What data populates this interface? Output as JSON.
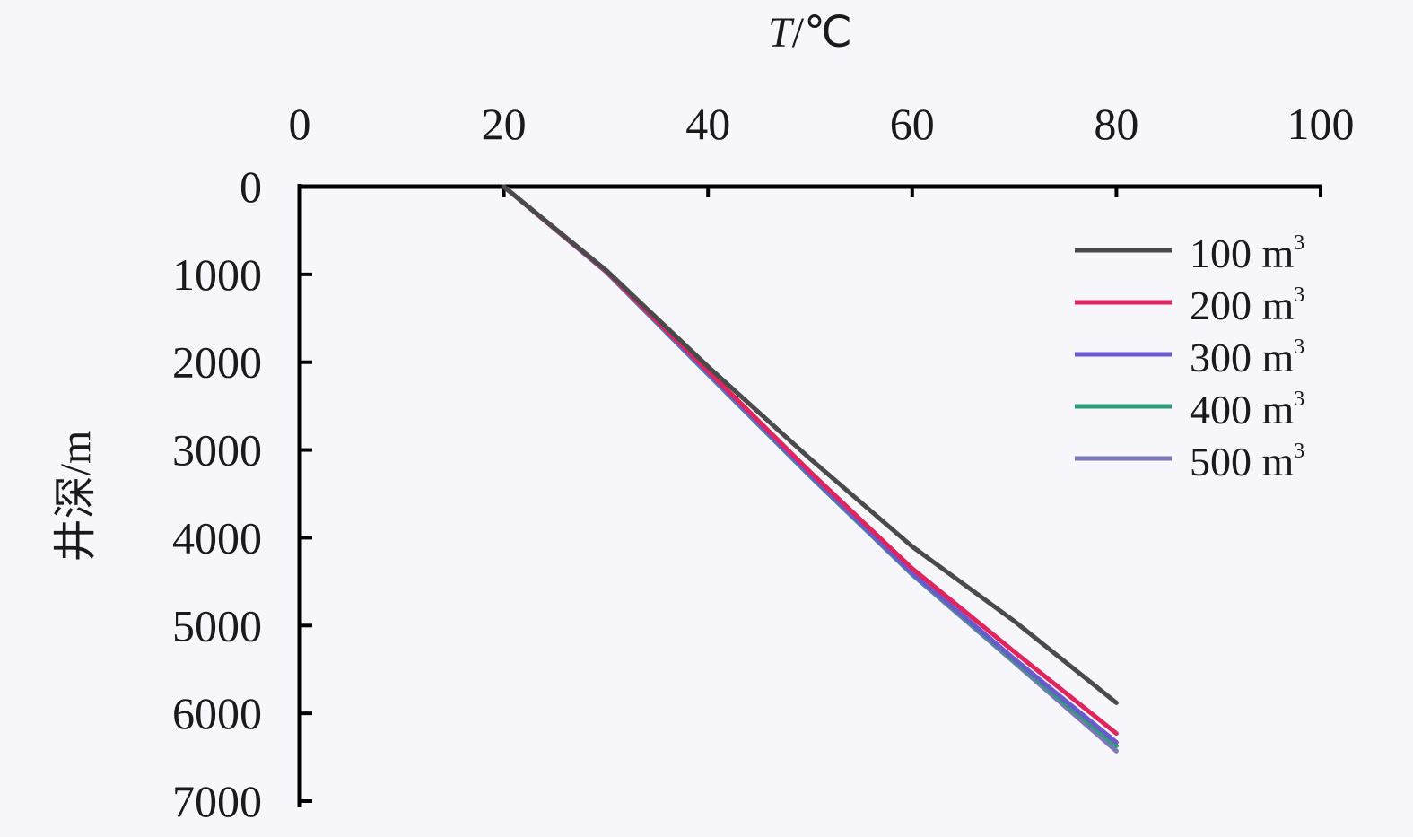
{
  "chart_data": {
    "type": "line",
    "xlabel_var": "T",
    "xlabel_unit": "/℃",
    "ylabel": "井深/m",
    "xlim": [
      0,
      100
    ],
    "ylim": [
      0,
      7000
    ],
    "x_ticks": [
      "0",
      "20",
      "40",
      "60",
      "80",
      "100"
    ],
    "y_ticks": [
      "0",
      "1000",
      "2000",
      "3000",
      "4000",
      "5000",
      "6000",
      "7000"
    ],
    "x_axis_position": "top",
    "y_axis_inverted": true,
    "grid": false,
    "legend_position": "top-right",
    "series": [
      {
        "name": "100 m",
        "sup": "3",
        "color": "#4a4a4a",
        "points": [
          [
            20,
            0
          ],
          [
            30,
            950
          ],
          [
            40,
            2050
          ],
          [
            50,
            3100
          ],
          [
            60,
            4100
          ],
          [
            70,
            4950
          ],
          [
            80,
            5880
          ]
        ]
      },
      {
        "name": "200 m",
        "sup": "3",
        "color": "#e0245e",
        "points": [
          [
            20,
            0
          ],
          [
            30,
            960
          ],
          [
            40,
            2100
          ],
          [
            50,
            3250
          ],
          [
            60,
            4350
          ],
          [
            70,
            5300
          ],
          [
            80,
            6230
          ]
        ]
      },
      {
        "name": "300 m",
        "sup": "3",
        "color": "#6a5acd",
        "points": [
          [
            20,
            0
          ],
          [
            30,
            965
          ],
          [
            40,
            2120
          ],
          [
            50,
            3280
          ],
          [
            60,
            4400
          ],
          [
            70,
            5380
          ],
          [
            80,
            6330
          ]
        ]
      },
      {
        "name": "400 m",
        "sup": "3",
        "color": "#2e9c7a",
        "points": [
          [
            20,
            0
          ],
          [
            30,
            965
          ],
          [
            40,
            2130
          ],
          [
            50,
            3290
          ],
          [
            60,
            4410
          ],
          [
            70,
            5400
          ],
          [
            80,
            6370
          ]
        ]
      },
      {
        "name": "500 m",
        "sup": "3",
        "color": "#7a78b8",
        "points": [
          [
            20,
            0
          ],
          [
            30,
            970
          ],
          [
            40,
            2140
          ],
          [
            50,
            3300
          ],
          [
            60,
            4420
          ],
          [
            70,
            5420
          ],
          [
            80,
            6430
          ]
        ]
      }
    ]
  }
}
